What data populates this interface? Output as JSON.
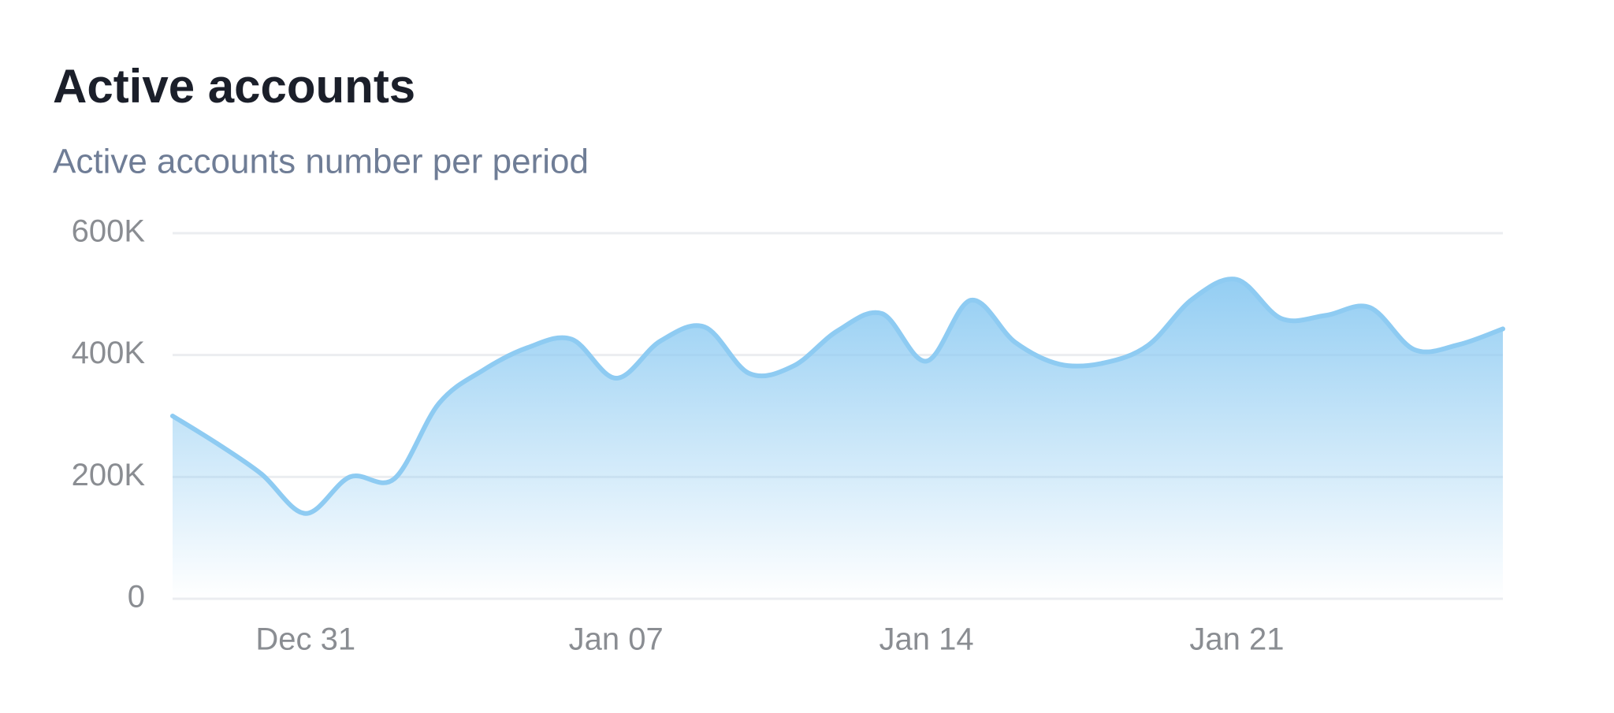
{
  "chart_data": {
    "type": "area",
    "title": "Active accounts",
    "subtitle": "Active accounts number per period",
    "categories": [
      null,
      null,
      null,
      "Dec 31",
      null,
      null,
      null,
      null,
      null,
      null,
      "Jan 07",
      null,
      null,
      null,
      null,
      null,
      null,
      "Jan 14",
      null,
      null,
      null,
      null,
      null,
      null,
      "Jan 21",
      null,
      null,
      null,
      null,
      null,
      null
    ],
    "series": [
      {
        "name": "Active accounts",
        "color": "#8ecbf2",
        "values": [
          300000,
          255000,
          205000,
          140000,
          200000,
          197000,
          320000,
          375000,
          412000,
          426000,
          362000,
          423000,
          446000,
          370000,
          382000,
          440000,
          468000,
          390000,
          490000,
          421000,
          385000,
          387000,
          416000,
          492000,
          524000,
          460000,
          465000,
          478000,
          409000,
          417000,
          443000
        ]
      }
    ],
    "ylim": [
      0,
      600000
    ],
    "yticks": [
      0,
      {
        "value": 200000,
        "label": "200K"
      },
      {
        "value": 400000,
        "label": "400K"
      },
      {
        "value": 600000,
        "label": "600K"
      }
    ],
    "grid": true
  }
}
